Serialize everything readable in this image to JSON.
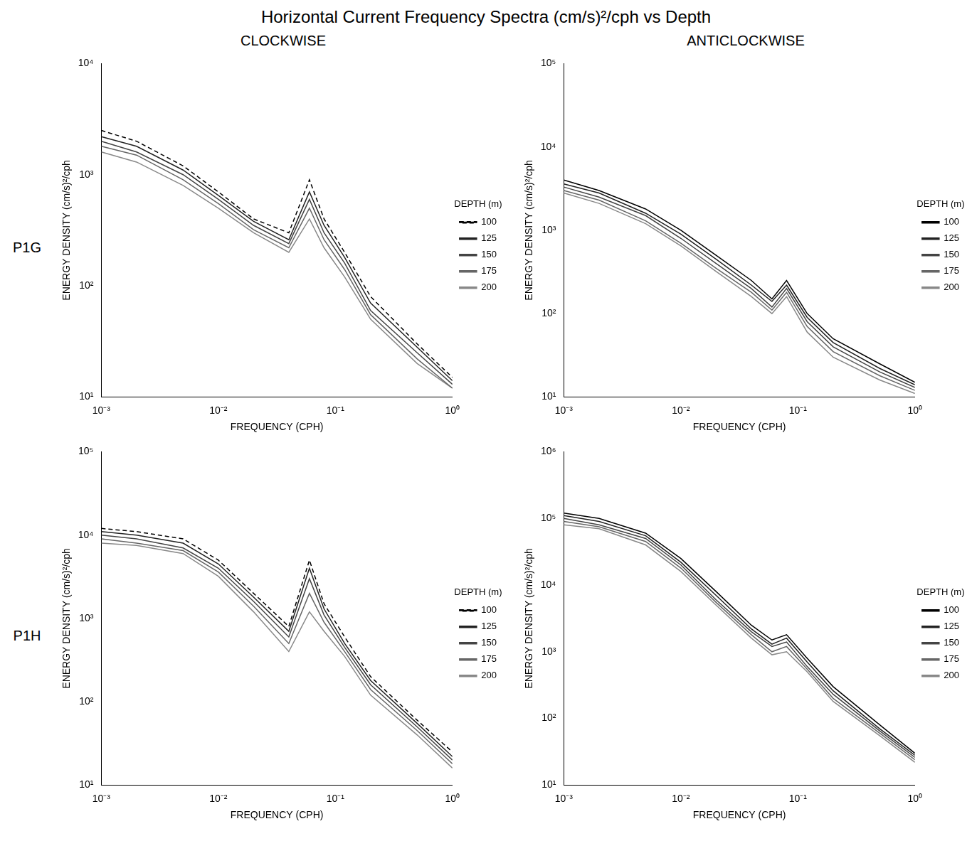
{
  "title": "Horizontal Current Frequency Spectra (cm/s)²/cph vs Depth",
  "columns": [
    "CLOCKWISE",
    "ANTICLOCKWISE"
  ],
  "rows": [
    "P1G",
    "P1H"
  ],
  "chart_data": [
    {
      "type": "line",
      "log": true,
      "grid": false,
      "legend": "right",
      "x_label": "FREQUENCY (CPH)",
      "y_label": "ENERGY DENSITY (cm/s)²/cph",
      "z_label": "DEPTH (m)",
      "x": [
        0.001,
        0.002,
        0.005,
        0.01,
        0.02,
        0.04,
        0.06,
        0.08,
        0.12,
        0.2,
        0.5,
        1
      ],
      "xlim": [
        0.001,
        1
      ],
      "xticks": [
        {
          "value": 0.001,
          "label": "10⁻³"
        },
        {
          "value": 0.01,
          "label": "10⁻²"
        },
        {
          "value": 0.1,
          "label": "10⁻¹"
        },
        {
          "value": 1,
          "label": "10⁰"
        }
      ],
      "ylim": [
        10,
        10000
      ],
      "yticks": [
        {
          "value": 10,
          "label": "10¹"
        },
        {
          "value": 100,
          "label": "10²"
        },
        {
          "value": 1000,
          "label": "10³"
        },
        {
          "value": 10000,
          "label": "10⁴"
        }
      ],
      "series": [
        {
          "name": "100",
          "color": "#000000",
          "line_style": "dashed",
          "marker": "none",
          "values": [
            2500,
            2000,
            1200,
            700,
            400,
            300,
            900,
            400,
            200,
            80,
            30,
            15
          ]
        },
        {
          "name": "125",
          "color": "#222222",
          "line_style": "solid",
          "marker": "none",
          "values": [
            2200,
            1800,
            1100,
            650,
            380,
            260,
            700,
            350,
            180,
            70,
            28,
            14
          ]
        },
        {
          "name": "150",
          "color": "#444444",
          "line_style": "solid",
          "marker": "none",
          "values": [
            2000,
            1600,
            1000,
            600,
            350,
            240,
            600,
            300,
            160,
            60,
            25,
            13
          ]
        },
        {
          "name": "175",
          "color": "#666666",
          "line_style": "solid",
          "marker": "none",
          "values": [
            1800,
            1500,
            900,
            550,
            320,
            220,
            500,
            260,
            140,
            55,
            22,
            12
          ]
        },
        {
          "name": "200",
          "color": "#888888",
          "line_style": "solid",
          "marker": "none",
          "values": [
            1600,
            1300,
            800,
            500,
            300,
            200,
            400,
            220,
            120,
            50,
            20,
            12
          ]
        }
      ]
    },
    {
      "type": "line",
      "log": true,
      "grid": false,
      "legend": "right",
      "x_label": "FREQUENCY (CPH)",
      "y_label": "ENERGY DENSITY (cm/s)²/cph",
      "z_label": "DEPTH (m)",
      "x": [
        0.001,
        0.002,
        0.005,
        0.01,
        0.02,
        0.04,
        0.06,
        0.08,
        0.12,
        0.2,
        0.5,
        1
      ],
      "xlim": [
        0.001,
        1
      ],
      "xticks": [
        {
          "value": 0.001,
          "label": "10⁻³"
        },
        {
          "value": 0.01,
          "label": "10⁻²"
        },
        {
          "value": 0.1,
          "label": "10⁻¹"
        },
        {
          "value": 1,
          "label": "10⁰"
        }
      ],
      "ylim": [
        10,
        100000
      ],
      "yticks": [
        {
          "value": 10,
          "label": "10¹"
        },
        {
          "value": 100,
          "label": "10²"
        },
        {
          "value": 1000,
          "label": "10³"
        },
        {
          "value": 10000,
          "label": "10⁴"
        },
        {
          "value": 100000,
          "label": "10⁵"
        }
      ],
      "series": [
        {
          "name": "100",
          "color": "#000000",
          "line_style": "solid",
          "marker": "none",
          "values": [
            4000,
            3000,
            1800,
            1000,
            500,
            250,
            150,
            250,
            100,
            50,
            25,
            15
          ]
        },
        {
          "name": "125",
          "color": "#222222",
          "line_style": "solid",
          "marker": "none",
          "values": [
            3600,
            2800,
            1600,
            900,
            450,
            220,
            140,
            220,
            90,
            45,
            22,
            14
          ]
        },
        {
          "name": "150",
          "color": "#444444",
          "line_style": "solid",
          "marker": "none",
          "values": [
            3300,
            2500,
            1500,
            800,
            400,
            200,
            120,
            200,
            80,
            40,
            20,
            13
          ]
        },
        {
          "name": "175",
          "color": "#666666",
          "line_style": "solid",
          "marker": "none",
          "values": [
            3000,
            2300,
            1300,
            700,
            350,
            180,
            110,
            180,
            70,
            35,
            18,
            12
          ]
        },
        {
          "name": "200",
          "color": "#888888",
          "line_style": "solid",
          "marker": "none",
          "values": [
            2800,
            2100,
            1200,
            650,
            320,
            160,
            100,
            160,
            60,
            30,
            16,
            11
          ]
        }
      ]
    },
    {
      "type": "line",
      "log": true,
      "grid": false,
      "legend": "right",
      "x_label": "FREQUENCY (CPH)",
      "y_label": "ENERGY DENSITY (cm/s)²/cph",
      "z_label": "DEPTH (m)",
      "x": [
        0.001,
        0.002,
        0.005,
        0.01,
        0.02,
        0.04,
        0.06,
        0.08,
        0.12,
        0.2,
        0.5,
        1
      ],
      "xlim": [
        0.001,
        1
      ],
      "xticks": [
        {
          "value": 0.001,
          "label": "10⁻³"
        },
        {
          "value": 0.01,
          "label": "10⁻²"
        },
        {
          "value": 0.1,
          "label": "10⁻¹"
        },
        {
          "value": 1,
          "label": "10⁰"
        }
      ],
      "ylim": [
        10,
        100000
      ],
      "yticks": [
        {
          "value": 10,
          "label": "10¹"
        },
        {
          "value": 100,
          "label": "10²"
        },
        {
          "value": 1000,
          "label": "10³"
        },
        {
          "value": 10000,
          "label": "10⁴"
        },
        {
          "value": 100000,
          "label": "10⁵"
        }
      ],
      "series": [
        {
          "name": "100",
          "color": "#000000",
          "line_style": "dashed",
          "marker": "none",
          "values": [
            12000,
            11000,
            9000,
            5000,
            2000,
            800,
            5000,
            1500,
            600,
            200,
            60,
            25
          ]
        },
        {
          "name": "125",
          "color": "#222222",
          "line_style": "solid",
          "marker": "none",
          "values": [
            11000,
            10000,
            8000,
            4500,
            1800,
            700,
            4000,
            1300,
            500,
            180,
            55,
            22
          ]
        },
        {
          "name": "150",
          "color": "#444444",
          "line_style": "solid",
          "marker": "none",
          "values": [
            10000,
            9000,
            7000,
            4000,
            1600,
            600,
            3000,
            1100,
            450,
            160,
            50,
            20
          ]
        },
        {
          "name": "175",
          "color": "#666666",
          "line_style": "solid",
          "marker": "none",
          "values": [
            9000,
            8000,
            6500,
            3600,
            1400,
            500,
            2000,
            900,
            400,
            140,
            45,
            18
          ]
        },
        {
          "name": "200",
          "color": "#888888",
          "line_style": "solid",
          "marker": "none",
          "values": [
            8000,
            7500,
            6000,
            3200,
            1200,
            400,
            1200,
            700,
            350,
            120,
            40,
            16
          ]
        }
      ]
    },
    {
      "type": "line",
      "log": true,
      "grid": false,
      "legend": "right",
      "x_label": "FREQUENCY (CPH)",
      "y_label": "ENERGY DENSITY (cm/s)²/cph",
      "z_label": "DEPTH (m)",
      "x": [
        0.001,
        0.002,
        0.005,
        0.01,
        0.02,
        0.04,
        0.06,
        0.08,
        0.12,
        0.2,
        0.5,
        1
      ],
      "xlim": [
        0.001,
        1
      ],
      "xticks": [
        {
          "value": 0.001,
          "label": "10⁻³"
        },
        {
          "value": 0.01,
          "label": "10⁻²"
        },
        {
          "value": 0.1,
          "label": "10⁻¹"
        },
        {
          "value": 1,
          "label": "10⁰"
        }
      ],
      "ylim": [
        10,
        1000000
      ],
      "yticks": [
        {
          "value": 10,
          "label": "10¹"
        },
        {
          "value": 100,
          "label": "10²"
        },
        {
          "value": 1000,
          "label": "10³"
        },
        {
          "value": 10000,
          "label": "10⁴"
        },
        {
          "value": 100000,
          "label": "10⁵"
        },
        {
          "value": 1000000,
          "label": "10⁶"
        }
      ],
      "series": [
        {
          "name": "100",
          "color": "#000000",
          "line_style": "solid",
          "marker": "none",
          "values": [
            120000,
            100000,
            60000,
            25000,
            8000,
            2500,
            1500,
            1800,
            800,
            300,
            80,
            30
          ]
        },
        {
          "name": "125",
          "color": "#222222",
          "line_style": "solid",
          "marker": "none",
          "values": [
            110000,
            90000,
            55000,
            22000,
            7000,
            2200,
            1300,
            1600,
            700,
            260,
            70,
            28
          ]
        },
        {
          "name": "150",
          "color": "#444444",
          "line_style": "solid",
          "marker": "none",
          "values": [
            100000,
            80000,
            50000,
            20000,
            6000,
            2000,
            1200,
            1400,
            600,
            230,
            65,
            26
          ]
        },
        {
          "name": "175",
          "color": "#666666",
          "line_style": "solid",
          "marker": "none",
          "values": [
            90000,
            75000,
            45000,
            18000,
            5500,
            1800,
            1000,
            1200,
            550,
            200,
            60,
            24
          ]
        },
        {
          "name": "200",
          "color": "#888888",
          "line_style": "solid",
          "marker": "none",
          "values": [
            80000,
            70000,
            40000,
            16000,
            5000,
            1600,
            900,
            1000,
            500,
            180,
            55,
            22
          ]
        }
      ]
    }
  ]
}
